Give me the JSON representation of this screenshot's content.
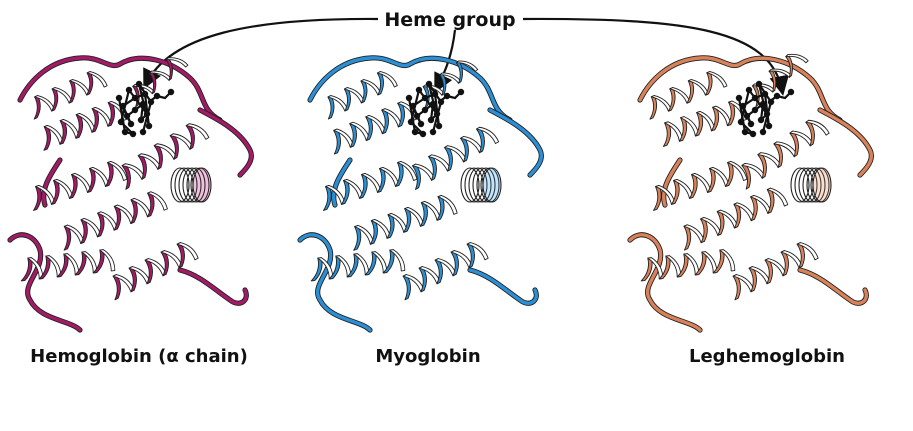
{
  "heme_label": "Heme group",
  "proteins": [
    {
      "id": "hemoglobin",
      "label": "Hemoglobin (α chain)",
      "color": "#a31a66"
    },
    {
      "id": "myoglobin",
      "label": "Myoglobin",
      "color": "#2b8fd6"
    },
    {
      "id": "leghemoglobin",
      "label": "Leghemoglobin",
      "color": "#d9825a"
    }
  ],
  "colors": {
    "arrow": "#111111",
    "heme": "#111111",
    "ribbon_back": "#ffffff"
  }
}
